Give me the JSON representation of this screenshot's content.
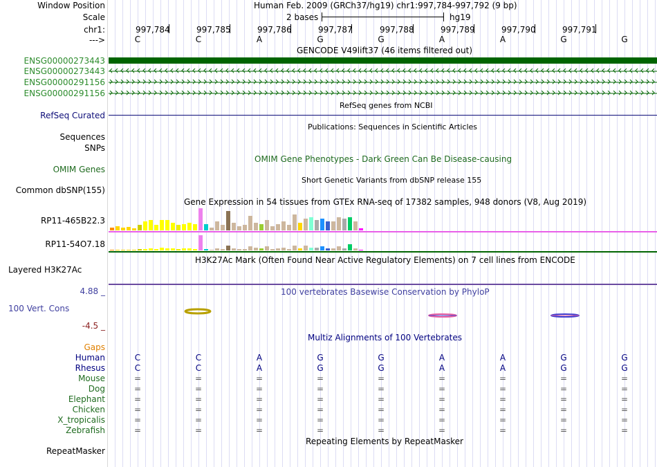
{
  "labels": {
    "window_position": "Window Position",
    "scale": "Scale",
    "chrom": "chr1:",
    "strand": "--->",
    "gencode_1": "ENSG00000273443",
    "gencode_2": "ENSG00000273443",
    "gencode_3": "ENSG00000291156",
    "gencode_4": "ENSG00000291156",
    "refseq": "RefSeq Curated",
    "sequences": "Sequences",
    "snps": "SNPs",
    "omim_genes": "OMIM Genes",
    "common_dbsnp": "Common dbSNP(155)",
    "gtex_gene_1": "RP11-465B22.3",
    "gtex_gene_2": "RP11-54O7.18",
    "layered_h3k27ac": "Layered H3K27Ac",
    "phylop_max": "4.88 _",
    "vert_cons": "100 Vert. Cons",
    "phylop_min": "-4.5 _",
    "gaps": "Gaps",
    "species": [
      "Human",
      "Rhesus",
      "Mouse",
      "Dog",
      "Elephant",
      "Chicken",
      "X_tropicalis",
      "Zebrafish"
    ],
    "repeatmasker": "RepeatMasker"
  },
  "header": {
    "position_text": "Human Feb. 2009 (GRCh37/hg19)   chr1:997,784-997,792 (9 bp)",
    "scale_text": "2 bases",
    "scale_assembly": "hg19",
    "positions": [
      "997,784",
      "997,785",
      "997,786",
      "997,787",
      "997,788",
      "997,789",
      "997,790",
      "997,791"
    ]
  },
  "bases": [
    "C",
    "C",
    "A",
    "G",
    "G",
    "A",
    "A",
    "G",
    "G"
  ],
  "tracks": {
    "gencode_title": "GENCODE V49lift37 (46 items filtered out)",
    "refseq_title": "RefSeq genes from NCBI",
    "publications_title": "Publications: Sequences in Scientific Articles",
    "omim_title": "OMIM Gene Phenotypes - Dark Green Can Be Disease-causing",
    "dbsnp_title": "Short Genetic Variants from dbSNP release 155",
    "gtex_title": "Gene Expression in 54 tissues from GTEx RNA-seq of 17382 samples, 948 donors (V8, Aug 2019)",
    "h3k27ac_title": "H3K27Ac Mark (Often Found Near Active Regulatory Elements) on 7 cell lines from ENCODE",
    "phylop_title": "100 vertebrates Basewise Conservation by PhyloP",
    "multiz_title": "Multiz Alignments of 100 Vertebrates",
    "repeatmasker_title": "Repeating Elements by RepeatMasker"
  },
  "multiz": {
    "human": [
      "C",
      "C",
      "A",
      "G",
      "G",
      "A",
      "A",
      "G",
      "G"
    ],
    "rhesus": [
      "C",
      "C",
      "A",
      "G",
      "G",
      "A",
      "A",
      "G",
      "G"
    ],
    "other_symbol": "="
  },
  "gtex": {
    "colors": [
      "#ff8c00",
      "#ffd700",
      "#ffd700",
      "#ffd700",
      "#ffd700",
      "#cdcd00",
      "#ffff00",
      "#ffff00",
      "#ffff00",
      "#ffff00",
      "#ffff00",
      "#ffff00",
      "#eeee00",
      "#ffff00",
      "#ffff00",
      "#ffff00",
      "#ee82ee",
      "#00cdcd",
      "#cdb79e",
      "#cdb79e",
      "#cdb79e",
      "#8b7355",
      "#cdb79e",
      "#cdb79e",
      "#cdb79e",
      "#cdb79e",
      "#cdb79e",
      "#9acd32",
      "#cdb79e",
      "#cdb79e",
      "#cdb79e",
      "#cdb79e",
      "#cdb79e",
      "#cdb79e",
      "#ffd700",
      "#cdb79e",
      "#7fffd4",
      "#aaaaaa",
      "#1e90ff",
      "#3a5fcd",
      "#cdb79e",
      "#cdb79e",
      "#aaaaaa",
      "#00cd66",
      "#cdb79e",
      "#ff00ff"
    ],
    "gene1": [
      4,
      6,
      4,
      5,
      3,
      9,
      14,
      16,
      9,
      16,
      16,
      12,
      8,
      10,
      12,
      10,
      34,
      10,
      4,
      14,
      8,
      30,
      12,
      6,
      8,
      22,
      12,
      10,
      16,
      6,
      10,
      14,
      8,
      24,
      12,
      18,
      20,
      16,
      18,
      14,
      14,
      20,
      18,
      20,
      14,
      3
    ],
    "gene2": [
      1,
      1,
      1,
      1,
      1,
      2,
      2,
      3,
      2,
      4,
      3,
      3,
      2,
      3,
      3,
      2,
      20,
      2,
      1,
      3,
      2,
      6,
      3,
      2,
      2,
      5,
      4,
      3,
      5,
      2,
      3,
      4,
      2,
      6,
      3,
      6,
      4,
      4,
      5,
      3,
      3,
      5,
      3,
      8,
      3,
      1
    ]
  },
  "colors": {
    "gencode": "#006400",
    "refseq": "#0c0c78",
    "label_green": "#2d8c2d",
    "phylop_title": "#3f3f9f",
    "gtex_line": "#e85fe8",
    "h3k27ac_line": "#6a4aa0",
    "multiz_title": "#000080"
  }
}
